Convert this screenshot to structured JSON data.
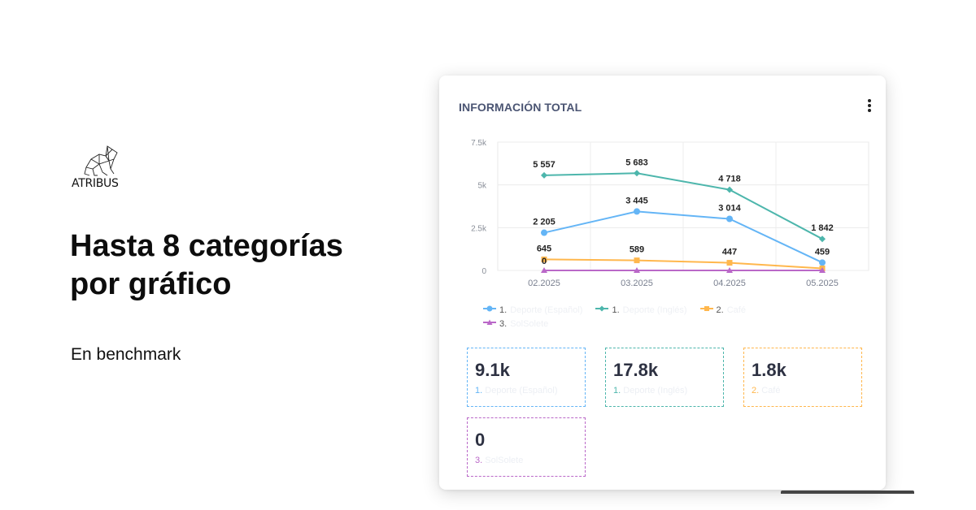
{
  "brand": {
    "logo_text": "ATRIBUS"
  },
  "headline": "Hasta 8 categorías por gráfico",
  "subhead": "En benchmark",
  "card": {
    "title": "INFORMACIÓN TOTAL",
    "menu_icon": "kebab-menu-icon"
  },
  "chart_data": {
    "type": "line",
    "categories": [
      "02.2025",
      "03.2025",
      "04.2025",
      "05.2025"
    ],
    "y_ticks": [
      "0",
      "2.5k",
      "5k",
      "7.5k"
    ],
    "ylim": [
      0,
      7500
    ],
    "grid": true,
    "legend_position": "bottom",
    "series": [
      {
        "name": "1. Deporte (Español)",
        "color": "#64b5f6",
        "marker": "circle",
        "values": [
          2205,
          3445,
          3014,
          459
        ],
        "labels": [
          "2 205",
          "3 445",
          "3 014",
          "459"
        ]
      },
      {
        "name": "1. Deporte (Inglés)",
        "color": "#4db6ac",
        "marker": "diamond",
        "values": [
          5557,
          5683,
          4718,
          1842
        ],
        "labels": [
          "5 557",
          "5 683",
          "4 718",
          "1 842"
        ]
      },
      {
        "name": "2. Café",
        "color": "#ffb74d",
        "marker": "square",
        "values": [
          645,
          589,
          447,
          120
        ],
        "labels": [
          "645",
          "589",
          "447",
          ""
        ]
      },
      {
        "name": "3. SolSolete",
        "color": "#ba68c8",
        "marker": "triangle",
        "values": [
          0,
          0,
          0,
          0
        ],
        "labels": [
          "0",
          "",
          "",
          ""
        ]
      }
    ]
  },
  "legend": [
    {
      "num": "1.",
      "name": "Deporte (Español)",
      "color": "#64b5f6",
      "icon": "circle-marker-icon"
    },
    {
      "num": "1.",
      "name": "Deporte (Inglés)",
      "color": "#4db6ac",
      "icon": "diamond-marker-icon"
    },
    {
      "num": "2.",
      "name": "Café",
      "color": "#ffb74d",
      "icon": "square-marker-icon"
    },
    {
      "num": "3.",
      "name": "SolSolete",
      "color": "#ba68c8",
      "icon": "triangle-marker-icon"
    }
  ],
  "stats": [
    {
      "value": "9.1k",
      "num": "1.",
      "name": "Deporte (Español)",
      "color": "#64b5f6"
    },
    {
      "value": "17.8k",
      "num": "1.",
      "name": "Deporte (Inglés)",
      "color": "#4db6ac"
    },
    {
      "value": "1.8k",
      "num": "2.",
      "name": "Café",
      "color": "#ffb74d"
    },
    {
      "value": "0",
      "num": "3.",
      "name": "SolSolete",
      "color": "#ba68c8"
    }
  ]
}
